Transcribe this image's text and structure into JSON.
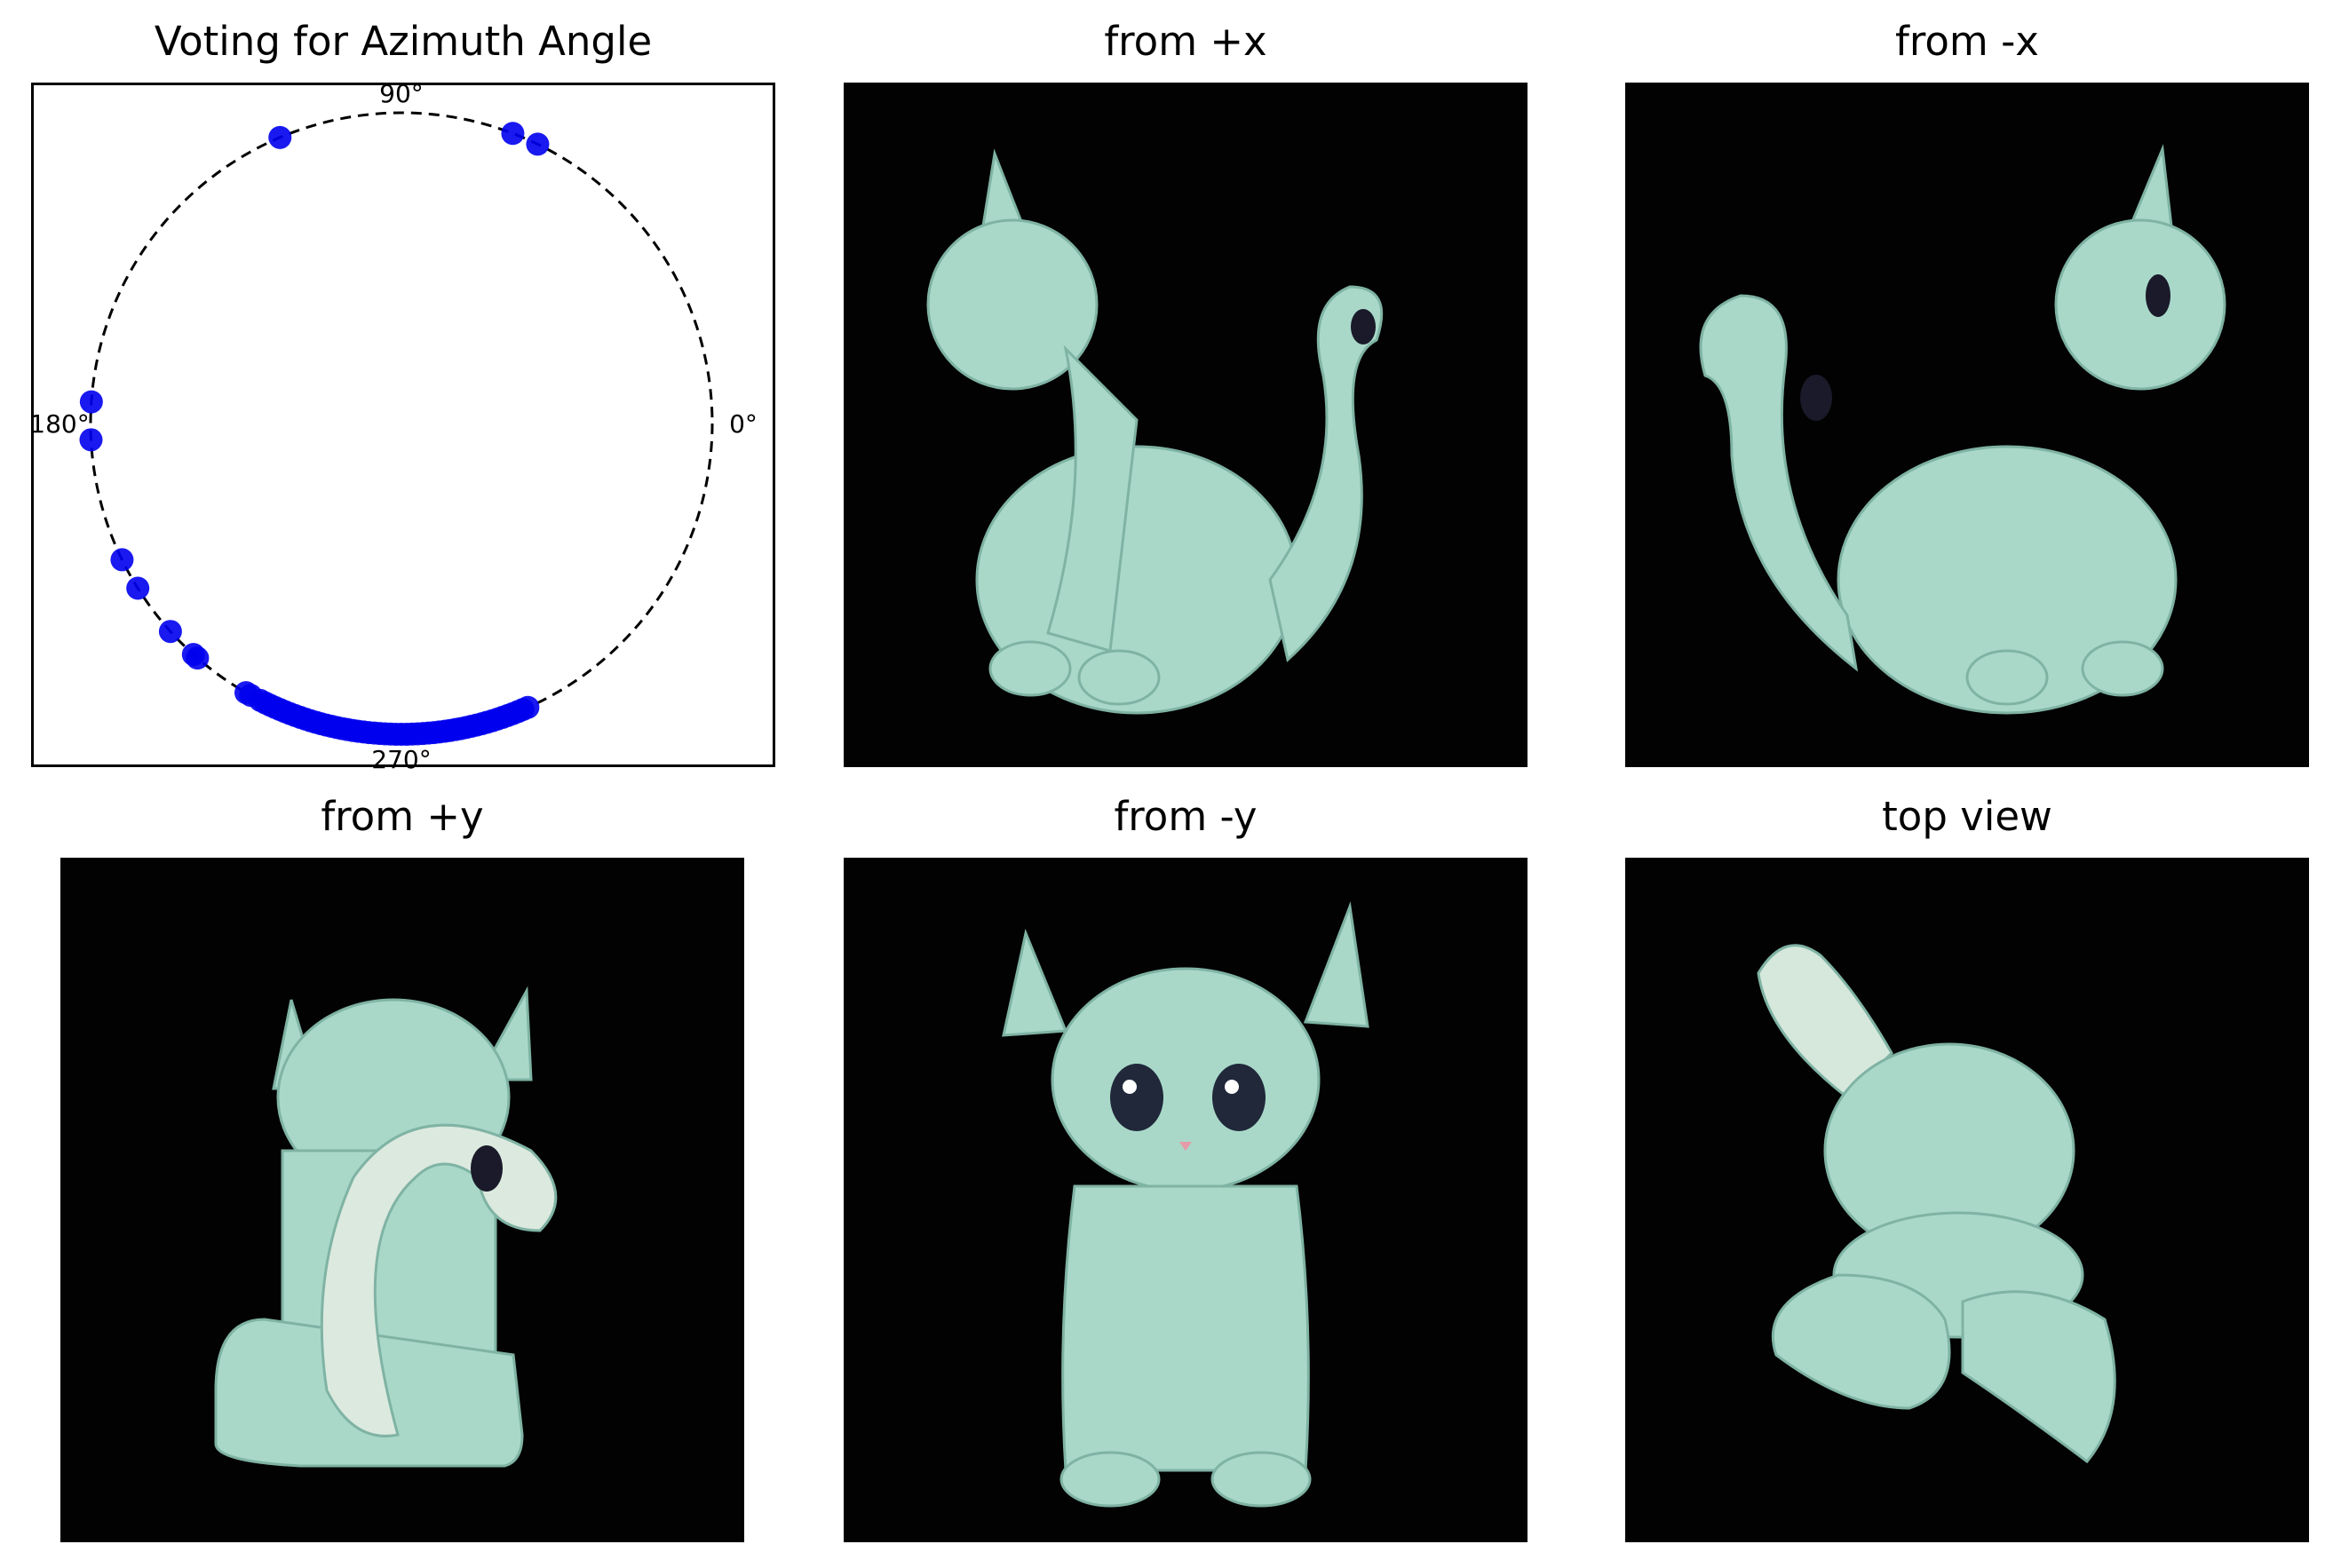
{
  "chart_data": {
    "type": "scatter",
    "projection": "polar",
    "title": "Voting for Azimuth Angle",
    "angle_labels": [
      {
        "deg": 0,
        "text": "0°"
      },
      {
        "deg": 90,
        "text": "90°"
      },
      {
        "deg": 180,
        "text": "180°"
      },
      {
        "deg": 270,
        "text": "270°"
      }
    ],
    "marker_color": "#0000ee",
    "circle_style": "dashed",
    "grid": false,
    "points_deg": [
      64,
      69,
      113,
      176,
      183,
      206,
      212,
      222,
      228,
      229,
      240,
      241,
      243,
      244,
      245,
      246,
      247,
      248,
      249,
      250,
      251,
      252,
      253,
      254,
      255,
      256,
      257,
      258,
      259,
      260,
      261,
      262,
      263,
      264,
      265,
      266,
      267,
      268,
      269,
      270,
      271,
      272,
      273,
      274,
      275,
      276,
      277,
      278,
      279,
      280,
      281,
      282,
      283,
      284,
      285,
      286,
      287,
      288,
      289,
      290,
      291,
      292,
      293,
      294
    ]
  },
  "panels": [
    {
      "title": "from +x",
      "view": "side-facing-left"
    },
    {
      "title": "from -x",
      "view": "side-facing-right"
    },
    {
      "title": "from +y",
      "view": "back"
    },
    {
      "title": "from -y",
      "view": "front"
    },
    {
      "title": "top view",
      "view": "top"
    }
  ]
}
